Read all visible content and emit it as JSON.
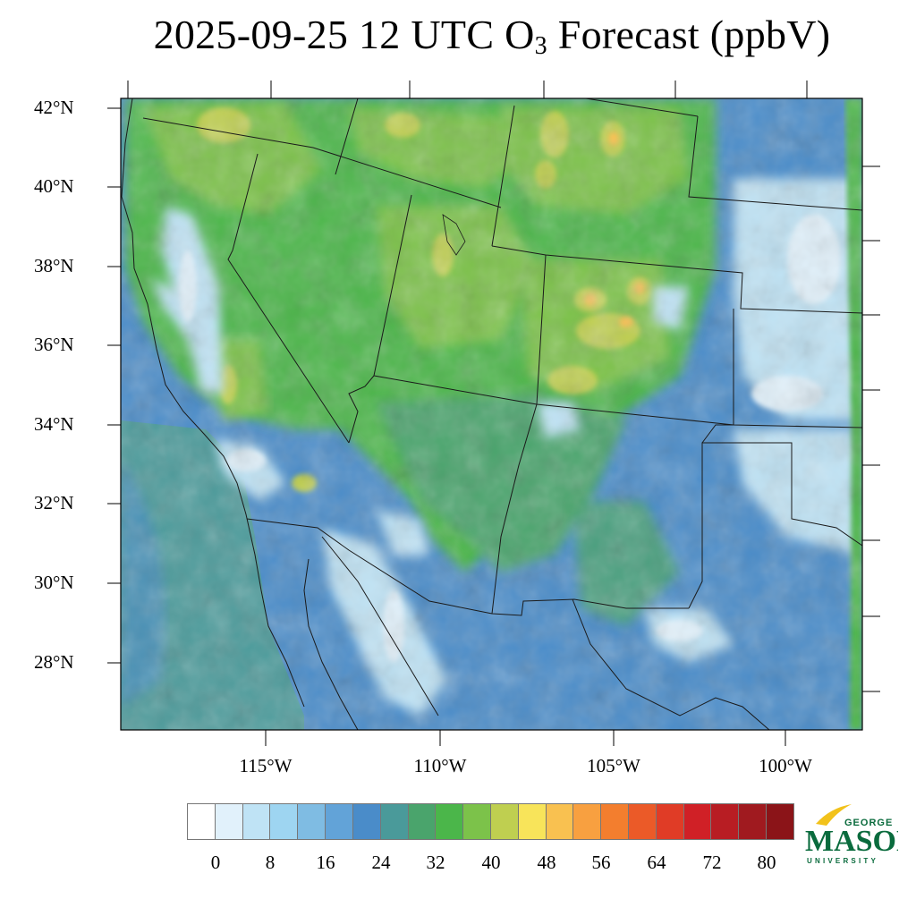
{
  "title": {
    "prefix": "2025-09-25 12 UTC O",
    "subscript": "3",
    "suffix": " Forecast (ppbV)"
  },
  "lat_labels": [
    "42°N",
    "40°N",
    "38°N",
    "36°N",
    "34°N",
    "32°N",
    "30°N",
    "28°N"
  ],
  "lon_labels": [
    "115°W",
    "110°W",
    "105°W",
    "100°W"
  ],
  "colorbar": {
    "unit": "ppbV",
    "colors": [
      "#ffffff",
      "#e1f1fb",
      "#bfe3f5",
      "#9ed5f1",
      "#7fbce3",
      "#62a3d8",
      "#4a8cc9",
      "#4a9a9a",
      "#4aa46c",
      "#4bb64a",
      "#7cc24a",
      "#bfcf50",
      "#f8e45a",
      "#f9c150",
      "#f8a040",
      "#f37e2e",
      "#eb5a28",
      "#e03c26",
      "#d02026",
      "#b81d23",
      "#a01a1f",
      "#8b1418"
    ],
    "tick_labels": [
      "0",
      "8",
      "16",
      "24",
      "32",
      "40",
      "48",
      "56",
      "64",
      "72",
      "80"
    ]
  },
  "map": {
    "region": "Southwestern United States and northern Mexico",
    "lat_range": [
      26.3,
      42.3
    ],
    "lon_range": [
      -119.3,
      -98.3
    ],
    "palette_note": "ozone mixing ratio shaded by colorbar levels"
  },
  "logo": {
    "line1": "GEORGE",
    "line2": "MASON",
    "line3": "UNIVERSITY",
    "color": "#0a6b3d",
    "accent": "#f2c21b"
  }
}
